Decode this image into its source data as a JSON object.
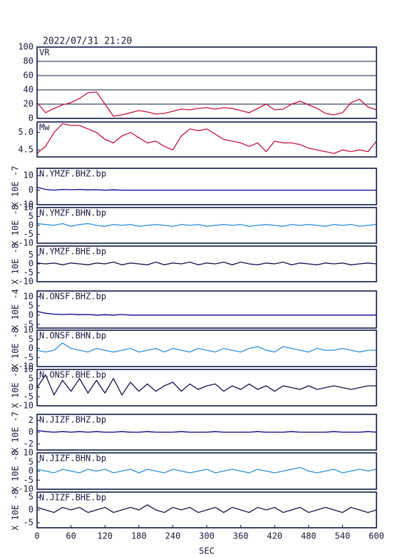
{
  "chart_data": [
    {
      "type": "line",
      "title": "2022/07/31 21:20",
      "label": "VR",
      "color": "#c8103c",
      "grid": true,
      "xlim": [
        0,
        600
      ],
      "ylim": [
        0,
        100
      ],
      "yticks": [
        0,
        20,
        40,
        60,
        80,
        100
      ],
      "x": [
        0,
        15,
        30,
        45,
        60,
        75,
        90,
        105,
        120,
        135,
        150,
        165,
        180,
        195,
        210,
        225,
        240,
        255,
        270,
        285,
        300,
        315,
        330,
        345,
        360,
        375,
        390,
        405,
        420,
        435,
        450,
        465,
        480,
        495,
        510,
        525,
        540,
        555,
        570,
        585,
        600
      ],
      "values": [
        22,
        8,
        14,
        19,
        22,
        28,
        36,
        37,
        20,
        3,
        5,
        8,
        11,
        9,
        6,
        7,
        10,
        13,
        12,
        14,
        15,
        13,
        15,
        14,
        11,
        8,
        14,
        20,
        12,
        13,
        20,
        24,
        19,
        14,
        7,
        5,
        8,
        22,
        27,
        16,
        12
      ]
    },
    {
      "type": "line",
      "label": "Mw",
      "color": "#c8103c",
      "xlim": [
        0,
        600
      ],
      "ylim": [
        4.3,
        5.3
      ],
      "yticks": [
        {
          "value": 4.5,
          "label": "4.5"
        },
        {
          "value": 5,
          "label": "5.0"
        }
      ],
      "x": [
        0,
        15,
        30,
        45,
        60,
        75,
        90,
        105,
        120,
        135,
        150,
        165,
        180,
        195,
        210,
        225,
        240,
        255,
        270,
        285,
        300,
        315,
        330,
        345,
        360,
        375,
        390,
        405,
        420,
        435,
        450,
        465,
        480,
        495,
        510,
        525,
        540,
        555,
        570,
        585,
        600
      ],
      "values": [
        4.4,
        4.6,
        5.0,
        5.25,
        5.2,
        5.2,
        5.1,
        5.0,
        4.8,
        4.7,
        4.9,
        5.0,
        4.85,
        4.7,
        4.75,
        4.6,
        4.5,
        4.9,
        5.1,
        5.05,
        5.1,
        4.95,
        4.8,
        4.75,
        4.7,
        4.6,
        4.7,
        4.45,
        4.75,
        4.7,
        4.7,
        4.65,
        4.55,
        4.5,
        4.45,
        4.4,
        4.5,
        4.45,
        4.5,
        4.45,
        4.75
      ]
    },
    {
      "type": "line",
      "label": "N.YMZF.BHZ.bp",
      "ylabel": "X 10E -7",
      "color": "#00008b",
      "xlim": [
        0,
        600
      ],
      "ylim": [
        -10,
        15
      ],
      "yticks": [
        -10,
        0,
        10
      ],
      "x": [
        0,
        15,
        30,
        45,
        60,
        75,
        90,
        105,
        120,
        135,
        150,
        165,
        180,
        195,
        210,
        225,
        240,
        255,
        270,
        285,
        300,
        315,
        330,
        345,
        360,
        375,
        390,
        405,
        420,
        435,
        450,
        465,
        480,
        495,
        510,
        525,
        540,
        555,
        570,
        585,
        600
      ],
      "values": [
        2,
        0.5,
        0,
        0.5,
        0.3,
        0.5,
        0.2,
        0.3,
        0,
        0.2,
        0,
        0,
        0,
        0,
        0,
        0,
        0,
        0,
        0,
        0,
        0,
        0,
        0,
        0,
        0,
        0,
        0,
        0,
        0,
        0,
        0,
        0,
        0,
        0,
        0,
        0,
        0,
        0,
        0,
        0,
        0
      ]
    },
    {
      "type": "line",
      "label": "N.YMZF.BHN.bp",
      "ylabel": "X 10E -8",
      "color": "#2a8fd8",
      "xlim": [
        0,
        600
      ],
      "ylim": [
        -10,
        10
      ],
      "yticks": [
        -10,
        -5,
        0,
        5,
        10
      ],
      "x": [
        0,
        15,
        30,
        45,
        60,
        75,
        90,
        105,
        120,
        135,
        150,
        165,
        180,
        195,
        210,
        225,
        240,
        255,
        270,
        285,
        300,
        315,
        330,
        345,
        360,
        375,
        390,
        405,
        420,
        435,
        450,
        465,
        480,
        495,
        510,
        525,
        540,
        555,
        570,
        585,
        600
      ],
      "values": [
        1,
        0.5,
        0,
        1,
        -0.5,
        0.5,
        1,
        0,
        -0.5,
        0.5,
        0,
        0.5,
        -0.5,
        0,
        0.5,
        0,
        -0.5,
        0.5,
        0,
        0.5,
        -0.5,
        0,
        0.5,
        0,
        0.5,
        -0.5,
        0,
        0.5,
        0,
        -0.5,
        0.5,
        0,
        0.5,
        0,
        -0.5,
        0.5,
        0,
        0.5,
        -0.5,
        0,
        0.5
      ]
    },
    {
      "type": "line",
      "label": "N.YMZF.BHE.bp",
      "ylabel": "X 10E -8",
      "color": "#10104a",
      "xlim": [
        0,
        600
      ],
      "ylim": [
        -10,
        10
      ],
      "yticks": [
        -10,
        -5,
        0,
        5
      ],
      "x": [
        0,
        15,
        30,
        45,
        60,
        75,
        90,
        105,
        120,
        135,
        150,
        165,
        180,
        195,
        210,
        225,
        240,
        255,
        270,
        285,
        300,
        315,
        330,
        345,
        360,
        375,
        390,
        405,
        420,
        435,
        450,
        465,
        480,
        495,
        510,
        525,
        540,
        555,
        570,
        585,
        600
      ],
      "values": [
        0.5,
        0,
        0.5,
        -0.5,
        0.5,
        0,
        -0.5,
        0.5,
        0,
        1,
        -0.5,
        0.5,
        0,
        -0.5,
        1,
        -0.5,
        0.5,
        0,
        1,
        -0.5,
        0.5,
        0,
        1,
        -0.5,
        1,
        0,
        -0.5,
        0.5,
        0,
        1,
        -0.5,
        0.5,
        0,
        -0.5,
        0.5,
        0,
        0.5,
        -0.5,
        0,
        0.5,
        0
      ]
    },
    {
      "type": "line",
      "label": "N.ONSF.BHZ.bp",
      "ylabel": "X 10E -4",
      "color": "#00008b",
      "xlim": [
        0,
        600
      ],
      "ylim": [
        -7,
        13
      ],
      "yticks": [
        -5,
        0,
        5,
        10
      ],
      "x": [
        0,
        15,
        30,
        45,
        60,
        75,
        90,
        105,
        120,
        135,
        150,
        165,
        180,
        195,
        210,
        225,
        240,
        255,
        270,
        285,
        300,
        315,
        330,
        345,
        360,
        375,
        390,
        405,
        420,
        435,
        450,
        465,
        480,
        495,
        510,
        525,
        540,
        555,
        570,
        585,
        600
      ],
      "values": [
        2,
        1,
        0.5,
        0.3,
        0.5,
        0.2,
        0.3,
        0,
        0.2,
        0,
        0.3,
        0,
        0,
        0,
        0,
        0,
        0,
        0,
        0,
        0,
        0,
        0,
        0,
        0,
        0,
        0,
        0,
        0,
        0,
        0,
        0,
        0,
        0,
        0,
        0,
        0,
        0,
        0,
        0,
        0,
        0
      ]
    },
    {
      "type": "line",
      "label": "N.ONSF.BHN.bp",
      "ylabel": "X 10E -8",
      "color": "#2a8fd8",
      "xlim": [
        0,
        600
      ],
      "ylim": [
        -10,
        10
      ],
      "yticks": [
        -10,
        -5,
        0,
        5,
        10
      ],
      "x": [
        0,
        15,
        30,
        45,
        60,
        75,
        90,
        105,
        120,
        135,
        150,
        165,
        180,
        195,
        210,
        225,
        240,
        255,
        270,
        285,
        300,
        315,
        330,
        345,
        360,
        375,
        390,
        405,
        420,
        435,
        450,
        465,
        480,
        495,
        510,
        525,
        540,
        555,
        570,
        585,
        600
      ],
      "values": [
        -1,
        -2,
        -1,
        3,
        0,
        -1,
        -2,
        0,
        -1,
        -2,
        -1,
        0,
        -2,
        -1,
        0,
        -2,
        0,
        -1,
        -2,
        0,
        -1,
        -2,
        0,
        -1,
        -2,
        0,
        1,
        -1,
        -2,
        1,
        0,
        -1,
        -2,
        0,
        -1,
        -1,
        0,
        -1,
        -2,
        -1,
        -1
      ]
    },
    {
      "type": "line",
      "label": "N.ONSF.BHE.bp",
      "ylabel": "X 10E -8",
      "color": "#10104a",
      "xlim": [
        0,
        600
      ],
      "ylim": [
        -10,
        10
      ],
      "yticks": [
        -10,
        -5,
        0,
        5,
        10
      ],
      "x": [
        0,
        15,
        30,
        45,
        60,
        75,
        90,
        105,
        120,
        135,
        150,
        165,
        180,
        195,
        210,
        225,
        240,
        255,
        270,
        285,
        300,
        315,
        330,
        345,
        360,
        375,
        390,
        405,
        420,
        435,
        450,
        465,
        480,
        495,
        510,
        525,
        540,
        555,
        570,
        585,
        600
      ],
      "values": [
        0,
        7,
        -4,
        4,
        -2,
        5,
        -3,
        4,
        -3,
        5,
        -4,
        3,
        -2,
        2,
        -2,
        1,
        3,
        -2,
        2,
        -1,
        1,
        2,
        -2,
        1,
        -1,
        2,
        -1,
        1,
        -2,
        1,
        0,
        -1,
        1,
        -1,
        0,
        1,
        0,
        -1,
        0,
        1,
        1
      ]
    },
    {
      "type": "line",
      "label": "N.JIZF.BHZ.bp",
      "ylabel": "X 10E -7",
      "color": "#00008b",
      "xlim": [
        0,
        600
      ],
      "ylim": [
        -3,
        3
      ],
      "yticks": [
        -2,
        0,
        2
      ],
      "x": [
        0,
        15,
        30,
        45,
        60,
        75,
        90,
        105,
        120,
        135,
        150,
        165,
        180,
        195,
        210,
        225,
        240,
        255,
        270,
        285,
        300,
        315,
        330,
        345,
        360,
        375,
        390,
        405,
        420,
        435,
        450,
        465,
        480,
        495,
        510,
        525,
        540,
        555,
        570,
        585,
        600
      ],
      "values": [
        0.3,
        0.1,
        0,
        0.1,
        0,
        0.1,
        0,
        0.1,
        0,
        0,
        0.1,
        0,
        0,
        0.1,
        0,
        0,
        0,
        0.1,
        0,
        0,
        0,
        0.1,
        0,
        0,
        0,
        0,
        0.1,
        0,
        0,
        0,
        0.1,
        0,
        0,
        0,
        0,
        0.1,
        0,
        0,
        0,
        0.1,
        0
      ]
    },
    {
      "type": "line",
      "label": "N.JIZF.BHN.bp",
      "ylabel": "X 10E -8",
      "color": "#2a8fd8",
      "xlim": [
        0,
        600
      ],
      "ylim": [
        -10,
        10
      ],
      "yticks": [
        -10,
        -5,
        0,
        5,
        10
      ],
      "x": [
        0,
        15,
        30,
        45,
        60,
        75,
        90,
        105,
        120,
        135,
        150,
        165,
        180,
        195,
        210,
        225,
        240,
        255,
        270,
        285,
        300,
        315,
        330,
        345,
        360,
        375,
        390,
        405,
        420,
        435,
        450,
        465,
        480,
        495,
        510,
        525,
        540,
        555,
        570,
        585,
        600
      ],
      "values": [
        1,
        0,
        -1,
        1,
        0,
        -1,
        1,
        0,
        1,
        -1,
        0,
        1,
        -1,
        1,
        0,
        -1,
        1,
        0,
        -1,
        0,
        1,
        -1,
        0,
        1,
        0,
        -1,
        1,
        0,
        -1,
        0,
        1,
        2,
        0,
        -1,
        0,
        1,
        -1,
        0,
        1,
        0,
        1
      ]
    },
    {
      "type": "line",
      "label": "N.JIZF.BHE.bp",
      "ylabel": "X 10E -8",
      "color": "#10104a",
      "xlim": [
        0,
        600
      ],
      "ylim": [
        -7,
        7
      ],
      "yticks": [
        -5,
        0,
        5
      ],
      "xticks": [
        0,
        60,
        120,
        180,
        240,
        300,
        360,
        420,
        480,
        540,
        600
      ],
      "xlabel": "SEC",
      "x": [
        0,
        15,
        30,
        45,
        60,
        75,
        90,
        105,
        120,
        135,
        150,
        165,
        180,
        195,
        210,
        225,
        240,
        255,
        270,
        285,
        300,
        315,
        330,
        345,
        360,
        375,
        390,
        405,
        420,
        435,
        450,
        465,
        480,
        495,
        510,
        525,
        540,
        555,
        570,
        585,
        600
      ],
      "values": [
        1,
        0,
        -1,
        1,
        0,
        1,
        -1,
        0,
        1,
        -1,
        0,
        1,
        0,
        2,
        0,
        -1,
        1,
        0,
        1,
        -1,
        0,
        1,
        -1,
        1,
        0,
        -1,
        1,
        0,
        1,
        -1,
        0,
        1,
        -1,
        0,
        1,
        0,
        -1,
        1,
        0,
        -1,
        0
      ]
    }
  ]
}
